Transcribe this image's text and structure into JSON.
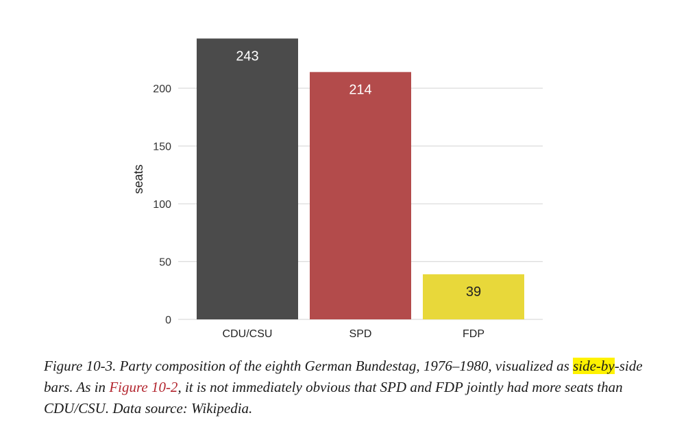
{
  "chart_data": {
    "type": "bar",
    "categories": [
      "CDU/CSU",
      "SPD",
      "FDP"
    ],
    "values": [
      243,
      214,
      39
    ],
    "colors": [
      "#4b4b4b",
      "#b34b4b",
      "#e8d83a"
    ],
    "label_colors": [
      "#ffffff",
      "#ffffff",
      "#222222"
    ],
    "ylabel": "seats",
    "yticks": [
      0,
      50,
      100,
      150,
      200
    ],
    "ylim": [
      0,
      250
    ],
    "grid": "horizontal",
    "legend": "none"
  },
  "caption": {
    "p1": "Figure 10-3. Party composition of the eighth German Bundestag, 1976–1980, visualized as ",
    "highlight": "side-by",
    "p2": "-side bars. As in ",
    "link": "Figure 10-2",
    "p3": ", it is not immediately obvious that SPD and FDP jointly had more seats than CDU/CSU. Data source: Wikipedia."
  }
}
